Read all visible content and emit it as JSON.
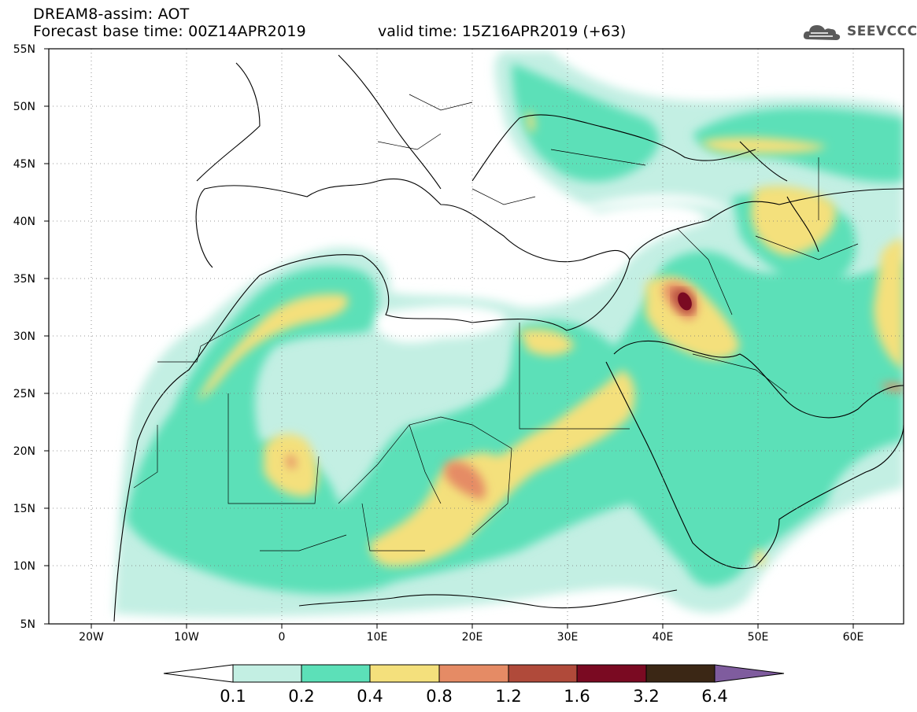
{
  "header": {
    "title_line1": "DREAM8-assim: AOT",
    "title_line2": "Forecast base time: 00Z14APR2019",
    "valid_time": "valid time: 15Z16APR2019 (+63)",
    "logo_text": "SEEVCCC",
    "logo_icon": "cloud-logo-icon"
  },
  "map": {
    "lat_labels": [
      "55N",
      "50N",
      "45N",
      "40N",
      "35N",
      "30N",
      "25N",
      "20N",
      "15N",
      "10N",
      "5N"
    ],
    "lon_labels": [
      "20W",
      "10W",
      "0",
      "10E",
      "20E",
      "30E",
      "40E",
      "50E",
      "60E"
    ],
    "grid": "dotted"
  },
  "colorbar": {
    "labels": [
      "0.1",
      "0.2",
      "0.4",
      "0.8",
      "1.2",
      "1.6",
      "3.2",
      "6.4"
    ],
    "colors": [
      "#ffffff",
      "#c3efe3",
      "#5ce0b8",
      "#f4e07c",
      "#e58b65",
      "#b04a3a",
      "#7a0a22",
      "#3b2715",
      "#7f5c9e"
    ]
  }
}
